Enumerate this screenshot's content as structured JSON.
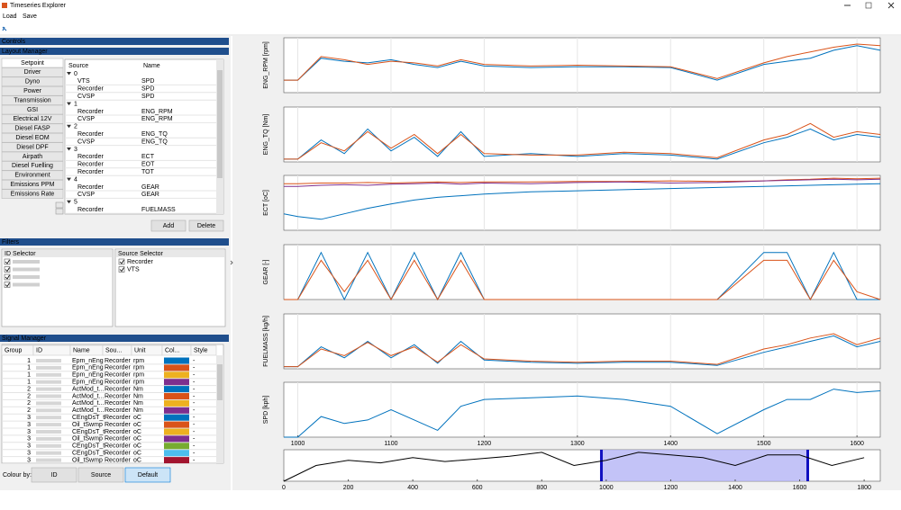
{
  "window": {
    "title": "Timeseries Explorer",
    "menu": [
      "Load",
      "Save"
    ]
  },
  "controls": {
    "title": "Controls"
  },
  "layout_manager": {
    "title": "Layout Manager",
    "categories": [
      "Setpoint",
      "Driver",
      "Dyno",
      "Power",
      "Transmission",
      "GSI",
      "Electrical 12V",
      "Diesel FASP",
      "Diesel EOM",
      "Diesel DPF",
      "Airpath",
      "Diesel Fuelling",
      "Environment",
      "Emissions PPM",
      "Emissions Rate"
    ],
    "columns": [
      "Source",
      "Name"
    ],
    "rows": [
      {
        "group": "0"
      },
      {
        "source": "VTS",
        "name": "SPD"
      },
      {
        "source": "Recorder",
        "name": "SPD"
      },
      {
        "source": "CVSP",
        "name": "SPD"
      },
      {
        "group": "1"
      },
      {
        "source": "Recorder",
        "name": "ENG_RPM"
      },
      {
        "source": "CVSP",
        "name": "ENG_RPM"
      },
      {
        "group": "2"
      },
      {
        "source": "Recorder",
        "name": "ENG_TQ"
      },
      {
        "source": "CVSP",
        "name": "ENG_TQ"
      },
      {
        "group": "3"
      },
      {
        "source": "Recorder",
        "name": "ECT"
      },
      {
        "source": "Recorder",
        "name": "EOT"
      },
      {
        "source": "Recorder",
        "name": "TOT"
      },
      {
        "group": "4"
      },
      {
        "source": "Recorder",
        "name": "GEAR"
      },
      {
        "source": "CVSP",
        "name": "GEAR"
      },
      {
        "group": "5"
      },
      {
        "source": "Recorder",
        "name": "FUELMASS"
      }
    ],
    "buttons": [
      "Add",
      "Delete"
    ]
  },
  "filters": {
    "title": "Filters",
    "id_selector": {
      "title": "ID Selector"
    },
    "source_selector": {
      "title": "Source Selector",
      "items": [
        "Recorder",
        "VTS"
      ]
    }
  },
  "signal_manager": {
    "title": "Signal Manager",
    "columns": [
      "Group",
      "ID",
      "Name",
      "Sou...",
      "Unit",
      "Col...",
      "Style"
    ],
    "rows": [
      {
        "group": 1,
        "name": "Epm_nEng",
        "source": "Recorder",
        "unit": "rpm",
        "color": "#0072bd",
        "style": "-"
      },
      {
        "group": 1,
        "name": "Epm_nEng",
        "source": "Recorder",
        "unit": "rpm",
        "color": "#d95319",
        "style": "-"
      },
      {
        "group": 1,
        "name": "Epm_nEng",
        "source": "Recorder",
        "unit": "rpm",
        "color": "#edb120",
        "style": "-"
      },
      {
        "group": 1,
        "name": "Epm_nEng",
        "source": "Recorder",
        "unit": "rpm",
        "color": "#7e2f8e",
        "style": "-"
      },
      {
        "group": 2,
        "name": "ActMod_t...",
        "source": "Recorder",
        "unit": "Nm",
        "color": "#0072bd",
        "style": "-"
      },
      {
        "group": 2,
        "name": "ActMod_t...",
        "source": "Recorder",
        "unit": "Nm",
        "color": "#d95319",
        "style": "-"
      },
      {
        "group": 2,
        "name": "ActMod_t...",
        "source": "Recorder",
        "unit": "Nm",
        "color": "#edb120",
        "style": "-"
      },
      {
        "group": 2,
        "name": "ActMod_t...",
        "source": "Recorder",
        "unit": "Nm",
        "color": "#7e2f8e",
        "style": "-"
      },
      {
        "group": 3,
        "name": "CEngDsT_t",
        "source": "Recorder",
        "unit": "oC",
        "color": "#0072bd",
        "style": "-"
      },
      {
        "group": 3,
        "name": "Oil_tSwmp",
        "source": "Recorder",
        "unit": "oC",
        "color": "#d95319",
        "style": "-"
      },
      {
        "group": 3,
        "name": "CEngDsT_t",
        "source": "Recorder",
        "unit": "oC",
        "color": "#edb120",
        "style": "-"
      },
      {
        "group": 3,
        "name": "Oil_tSwmp",
        "source": "Recorder",
        "unit": "oC",
        "color": "#7e2f8e",
        "style": "-"
      },
      {
        "group": 3,
        "name": "CEngDsT_t",
        "source": "Recorder",
        "unit": "oC",
        "color": "#77ac30",
        "style": "-"
      },
      {
        "group": 3,
        "name": "CEngDsT_t",
        "source": "Recorder",
        "unit": "oC",
        "color": "#4dbeee",
        "style": "-"
      },
      {
        "group": 3,
        "name": "Oil_tSwmp",
        "source": "Recorder",
        "unit": "oC",
        "color": "#a2142f",
        "style": "-"
      }
    ]
  },
  "colour_by": {
    "label": "Colour by:",
    "options": [
      "ID",
      "Source",
      "Default"
    ],
    "selected": 2
  },
  "chart_data": [
    {
      "type": "line",
      "ylabel": "ENG_RPM [rpm]",
      "xlim": [
        985,
        1625
      ],
      "ylim": [
        0,
        3500
      ],
      "grid": true,
      "x": [
        985,
        1000,
        1025,
        1050,
        1075,
        1100,
        1125,
        1150,
        1175,
        1200,
        1250,
        1300,
        1350,
        1400,
        1450,
        1500,
        1525,
        1550,
        1575,
        1600,
        1625
      ],
      "series": [
        {
          "color": "#0072bd",
          "values": [
            800,
            800,
            2200,
            2000,
            1900,
            2100,
            1800,
            1600,
            2000,
            1700,
            1600,
            1650,
            1650,
            1600,
            800,
            1800,
            2000,
            2200,
            2700,
            3000,
            2700
          ]
        },
        {
          "color": "#d95319",
          "values": [
            800,
            800,
            2300,
            2100,
            1800,
            2000,
            1900,
            1700,
            2100,
            1800,
            1700,
            1750,
            1700,
            1650,
            900,
            1900,
            2300,
            2600,
            2900,
            3100,
            3000
          ]
        }
      ]
    },
    {
      "type": "line",
      "ylabel": "ENG_TQ [Nm]",
      "xlim": [
        985,
        1625
      ],
      "ylim": [
        0,
        2000
      ],
      "grid": true,
      "x": [
        985,
        1000,
        1025,
        1050,
        1075,
        1100,
        1125,
        1150,
        1175,
        1200,
        1250,
        1300,
        1350,
        1400,
        1450,
        1500,
        1525,
        1550,
        1575,
        1600,
        1625
      ],
      "series": [
        {
          "color": "#0072bd",
          "values": [
            100,
            100,
            800,
            300,
            1200,
            400,
            900,
            200,
            1100,
            200,
            300,
            200,
            300,
            250,
            100,
            700,
            900,
            1200,
            800,
            1000,
            900
          ]
        },
        {
          "color": "#d95319",
          "values": [
            100,
            100,
            700,
            400,
            1100,
            500,
            1000,
            300,
            1000,
            300,
            250,
            250,
            350,
            300,
            150,
            800,
            1000,
            1400,
            900,
            1100,
            1000
          ]
        }
      ]
    },
    {
      "type": "line",
      "ylabel": "ECT [oC]",
      "xlim": [
        985,
        1625
      ],
      "ylim": [
        0,
        100
      ],
      "grid": true,
      "x": [
        985,
        1000,
        1025,
        1050,
        1075,
        1100,
        1125,
        1150,
        1175,
        1200,
        1250,
        1300,
        1350,
        1400,
        1450,
        1500,
        1525,
        1550,
        1575,
        1600,
        1625
      ],
      "series": [
        {
          "color": "#0072bd",
          "values": [
            30,
            25,
            20,
            30,
            40,
            48,
            55,
            60,
            63,
            66,
            70,
            72,
            74,
            76,
            78,
            80,
            81,
            82,
            83,
            84,
            85
          ]
        },
        {
          "color": "#d95319",
          "values": [
            85,
            85,
            86,
            86,
            87,
            86,
            87,
            88,
            87,
            88,
            88,
            89,
            89,
            90,
            89,
            90,
            92,
            93,
            95,
            94,
            95
          ]
        },
        {
          "color": "#7e2f8e",
          "values": [
            80,
            80,
            82,
            83,
            82,
            84,
            85,
            86,
            84,
            86,
            85,
            87,
            88,
            86,
            87,
            90,
            91,
            92,
            93,
            92,
            93
          ]
        }
      ]
    },
    {
      "type": "line",
      "ylabel": "GEAR [-]",
      "xlim": [
        985,
        1625
      ],
      "ylim": [
        0,
        7
      ],
      "grid": true,
      "x": [
        985,
        1000,
        1025,
        1050,
        1075,
        1100,
        1125,
        1150,
        1175,
        1200,
        1250,
        1300,
        1350,
        1400,
        1450,
        1500,
        1525,
        1550,
        1575,
        1600,
        1625
      ],
      "series": [
        {
          "color": "#0072bd",
          "values": [
            0,
            0,
            6,
            0,
            6,
            0,
            6,
            0,
            6,
            0,
            0,
            0,
            0,
            0,
            0,
            6,
            6,
            0,
            6,
            0,
            0
          ]
        },
        {
          "color": "#d95319",
          "values": [
            0,
            0,
            5,
            1,
            5,
            0,
            5,
            0,
            5,
            0,
            0,
            0,
            0,
            0,
            0,
            5,
            5,
            0,
            5,
            1,
            0
          ]
        }
      ]
    },
    {
      "type": "line",
      "ylabel": "FUELMASS [kg/h]",
      "xlim": [
        985,
        1625
      ],
      "ylim": [
        0,
        50
      ],
      "grid": true,
      "x": [
        985,
        1000,
        1025,
        1050,
        1075,
        1100,
        1125,
        1150,
        1175,
        1200,
        1250,
        1300,
        1350,
        1400,
        1450,
        1500,
        1525,
        1550,
        1575,
        1600,
        1625
      ],
      "series": [
        {
          "color": "#0072bd",
          "values": [
            2,
            2,
            20,
            10,
            25,
            10,
            22,
            5,
            25,
            8,
            6,
            5,
            6,
            6,
            3,
            15,
            20,
            25,
            30,
            20,
            25
          ]
        },
        {
          "color": "#d95319",
          "values": [
            2,
            2,
            18,
            12,
            24,
            12,
            20,
            6,
            22,
            9,
            7,
            6,
            7,
            7,
            4,
            18,
            22,
            28,
            32,
            22,
            28
          ]
        }
      ]
    },
    {
      "type": "line",
      "ylabel": "SPD [kph]",
      "xlim": [
        985,
        1625
      ],
      "ylim": [
        0,
        160
      ],
      "grid": true,
      "xticks": [
        1000,
        1100,
        1200,
        1300,
        1400,
        1500,
        1600
      ],
      "x": [
        985,
        1000,
        1025,
        1050,
        1075,
        1100,
        1125,
        1150,
        1175,
        1200,
        1250,
        1300,
        1350,
        1400,
        1450,
        1500,
        1525,
        1550,
        1575,
        1600,
        1625
      ],
      "series": [
        {
          "color": "#0072bd",
          "values": [
            0,
            0,
            60,
            40,
            50,
            80,
            50,
            20,
            90,
            110,
            115,
            120,
            110,
            90,
            10,
            80,
            110,
            110,
            140,
            130,
            135
          ]
        }
      ]
    },
    {
      "type": "line",
      "xlim": [
        0,
        1850
      ],
      "ylim": [
        0,
        120
      ],
      "selection": [
        985,
        1625
      ],
      "xticks": [
        0,
        200,
        400,
        600,
        800,
        1000,
        1200,
        1400,
        1600,
        1800
      ],
      "x": [
        0,
        100,
        200,
        300,
        400,
        500,
        600,
        700,
        800,
        900,
        1000,
        1100,
        1200,
        1300,
        1400,
        1500,
        1600,
        1700,
        1800
      ],
      "series": [
        {
          "color": "#000000",
          "values": [
            0,
            60,
            80,
            70,
            90,
            75,
            85,
            95,
            110,
            60,
            80,
            110,
            100,
            90,
            60,
            100,
            100,
            60,
            90
          ]
        }
      ]
    }
  ]
}
